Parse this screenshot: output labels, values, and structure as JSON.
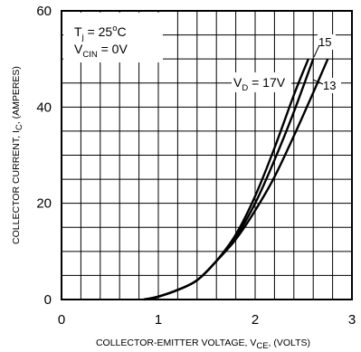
{
  "chart_data": {
    "type": "line",
    "xlabel_main": "COLLECTOR-EMITTER VOLTAGE, V",
    "xlabel_sub": "CE",
    "xlabel_tail": ", (VOLTS)",
    "ylabel_main": "COLLECTOR CURRENT, I",
    "ylabel_sub": "C",
    "ylabel_tail": ", (AMPERES)",
    "xlim": [
      0,
      3
    ],
    "ylim": [
      0,
      60
    ],
    "x_ticks": [
      "0",
      "1",
      "2",
      "3"
    ],
    "y_ticks": [
      "0",
      "20",
      "40",
      "60"
    ],
    "x_tick_values": [
      0,
      1,
      2,
      3
    ],
    "y_tick_values": [
      0,
      20,
      40,
      60
    ],
    "grid": true,
    "conditions": {
      "tj_main": "T",
      "tj_sub": "j",
      "tj_val": " = 25",
      "tj_deg": "o",
      "tj_unit": "C",
      "vcin_main": "V",
      "vcin_sub": "CIN",
      "vcin_val": " = 0V"
    },
    "vd_label": {
      "main": "V",
      "sub": "D",
      "val": " = 17V"
    },
    "series": [
      {
        "name": "17",
        "x": [
          0.85,
          1.0,
          1.2,
          1.4,
          1.6,
          1.8,
          2.0,
          2.2,
          2.4,
          2.55
        ],
        "y": [
          0,
          0.6,
          2.0,
          4.0,
          8.0,
          13.5,
          21.5,
          31.5,
          42.5,
          50
        ]
      },
      {
        "name": "15",
        "x": [
          0.85,
          1.0,
          1.2,
          1.4,
          1.6,
          1.8,
          2.0,
          2.2,
          2.4,
          2.6
        ],
        "y": [
          0,
          0.6,
          2.0,
          4.0,
          8.0,
          13.0,
          20.0,
          29.0,
          39.0,
          50
        ]
      },
      {
        "name": "13",
        "x": [
          0.85,
          1.0,
          1.2,
          1.4,
          1.6,
          1.8,
          2.0,
          2.2,
          2.4,
          2.6,
          2.75
        ],
        "y": [
          0,
          0.6,
          2.0,
          4.0,
          8.0,
          12.5,
          18.5,
          25.5,
          34.0,
          43.0,
          50
        ]
      }
    ],
    "series_labels": [
      "15",
      "13"
    ]
  }
}
